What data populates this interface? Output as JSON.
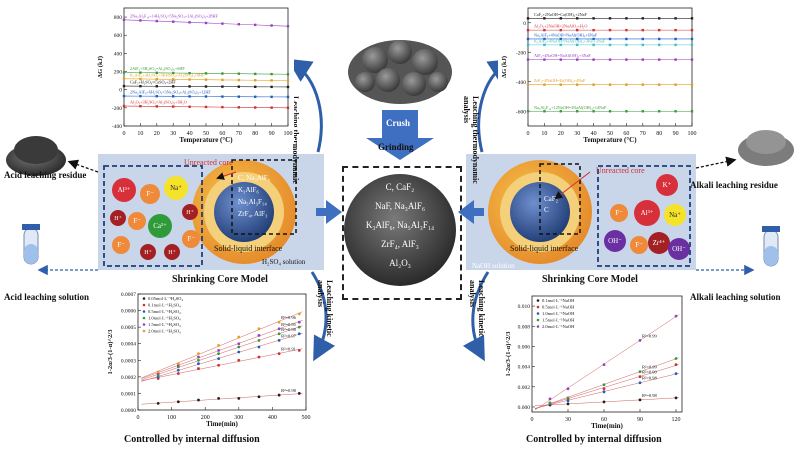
{
  "center": {
    "crush_label": "Crush",
    "grinding_label": "Grinding",
    "composition_lines": [
      "C, CaF₂",
      "NaF, Na₃AlF₆",
      "K₃AlF₆, Na₅Al₃F₁₄",
      "ZrF₄, AlF₃",
      "Al₂O₃"
    ]
  },
  "acid_side": {
    "residue_label": "Acid leaching residue",
    "solution_label": "Acid leaching solution",
    "thermo_label": "Leaching thermodynamic analysis",
    "kinetic_label": "Leaching kinetic analysis",
    "core_title": "Shrinking Core Model",
    "unreacted_core": "Unreacted core",
    "interface_label": "Solid-liquid interface",
    "solution_tag": "H₂SO₄ solution",
    "core_species": [
      "C, Na₃AlF₆",
      "K₃AlF₆",
      "Na₅Al₃F₁₄",
      "ZrF₄, AlF₃"
    ],
    "ions": [
      "Al³⁺",
      "F⁻",
      "Na⁺",
      "H⁺",
      "F⁻",
      "Ca²⁺",
      "H⁺",
      "F⁻",
      "H⁺",
      "H⁺",
      "F⁻"
    ],
    "controlled_label": "Controlled by internal diffusion"
  },
  "alkali_side": {
    "residue_label": "Alkali leaching residue",
    "solution_label": "Alkali leaching solution",
    "thermo_label": "Leaching thermodynamic analysis",
    "kinetic_label": "Leaching kinetic analysis",
    "core_title": "Shrinking Core Model",
    "unreacted_core": "Unreacted core",
    "interface_label": "Solid-liquid interface",
    "solution_tag": "NaOH solution",
    "core_species": [
      "CaF₂",
      "C"
    ],
    "ions": [
      "K⁺",
      "F⁻",
      "Al³⁺",
      "Na⁺",
      "OH⁻",
      "F⁻",
      "Zr⁴⁺",
      "OH⁻"
    ],
    "controlled_label": "Controlled by internal diffusion"
  },
  "chart_data": [
    {
      "id": "acid-thermo",
      "type": "line",
      "xlabel": "Temperature (°C)",
      "ylabel": "ΔG (kJ)",
      "xticks": [
        0,
        10,
        20,
        30,
        40,
        50,
        60,
        70,
        80,
        90,
        100
      ],
      "ylim": [
        -400,
        900
      ],
      "yticks": [
        -400,
        -200,
        0,
        200,
        400,
        600,
        800
      ],
      "x": [
        0,
        10,
        20,
        30,
        40,
        50,
        60,
        70,
        80,
        90,
        100
      ],
      "series": [
        {
          "name": "2Na₅Al₃F₁₄+14H₂SO₄=5Na₂SO₄+3Al₂(SO₄)₃+28HF",
          "color": "#9b3fbf",
          "values": [
            770,
            763,
            756,
            749,
            742,
            735,
            728,
            721,
            714,
            707,
            700
          ]
        },
        {
          "name": "2AlF₃+3H₂SO₄=Al₂(SO₄)₃+6HF",
          "color": "#3a9a3a",
          "values": [
            190,
            188,
            186,
            184,
            182,
            180,
            178,
            176,
            174,
            172,
            170
          ]
        },
        {
          "name": "K₃AlF₆+3H₂SO₄=3KHSO₄+Al₂(SO₄)₃+6HF",
          "color": "#e0a020",
          "values": [
            120,
            118,
            116,
            114,
            112,
            110,
            108,
            106,
            104,
            102,
            100
          ]
        },
        {
          "name": "CaF₂+H₂SO₄=CaSO₄+2HF",
          "color": "#222222",
          "values": [
            40,
            39,
            38,
            37,
            36,
            35,
            34,
            33,
            32,
            31,
            30
          ]
        },
        {
          "name": "2Na₃AlF₆+6H₂SO₄=3Na₂SO₄+Al₂(SO₄)₃+12HF",
          "color": "#1f5fbf",
          "values": [
            -70,
            -71,
            -72,
            -73,
            -74,
            -75,
            -76,
            -77,
            -78,
            -79,
            -80
          ]
        },
        {
          "name": "Al₂O₃+3H₂SO₄=Al₂(SO₄)₃+3H₂O",
          "color": "#d03030",
          "values": [
            -180,
            -182,
            -184,
            -186,
            -188,
            -190,
            -192,
            -194,
            -196,
            -198,
            -200
          ]
        }
      ]
    },
    {
      "id": "alkali-thermo",
      "type": "line",
      "xlabel": "Temperature (°C)",
      "ylabel": "ΔG (kJ)",
      "xticks": [
        0,
        10,
        20,
        30,
        40,
        50,
        60,
        70,
        80,
        90,
        100
      ],
      "ylim": [
        -700,
        100
      ],
      "yticks": [
        -600,
        -400,
        -200,
        0
      ],
      "x": [
        0,
        10,
        20,
        30,
        40,
        50,
        60,
        70,
        80,
        90,
        100
      ],
      "series": [
        {
          "name": "CaF₂+2NaOH=Ca(OH)₂+2NaF",
          "color": "#222222",
          "values": [
            30,
            30,
            30,
            30,
            30,
            30,
            30,
            30,
            30,
            30,
            30
          ]
        },
        {
          "name": "Al₂O₃+2NaOH=2NaAlO₂+H₂O",
          "color": "#d03030",
          "values": [
            -50,
            -50,
            -50,
            -50,
            -50,
            -50,
            -50,
            -50,
            -50,
            -50,
            -50
          ]
        },
        {
          "name": "Na₃AlF₆+4NaOH=NaAl(OH)₄+6NaF",
          "color": "#1f5fbf",
          "values": [
            -110,
            -110,
            -110,
            -110,
            -110,
            -110,
            -110,
            -110,
            -110,
            -110,
            -110
          ]
        },
        {
          "name": "K₃AlF₆+4NaOH=NaAl(OH)₄+3KF+3NaF",
          "color": "#40c0c0",
          "values": [
            -150,
            -150,
            -150,
            -150,
            -150,
            -150,
            -150,
            -150,
            -150,
            -150,
            -150
          ]
        },
        {
          "name": "AlF₃+4NaOH=NaAl(OH)₄+3NaF",
          "color": "#9b3fbf",
          "values": [
            -250,
            -250,
            -250,
            -250,
            -250,
            -250,
            -250,
            -250,
            -250,
            -250,
            -250
          ]
        },
        {
          "name": "ZrF₄+4NaOH=Zr(OH)₄+4NaF",
          "color": "#e0a020",
          "values": [
            -420,
            -420,
            -420,
            -420,
            -420,
            -420,
            -420,
            -420,
            -420,
            -420,
            -420
          ]
        },
        {
          "name": "Na₅Al₃F₁₄+12NaOH=3NaAl(OH)₄+14NaF",
          "color": "#3a9a3a",
          "values": [
            -600,
            -600,
            -600,
            -600,
            -600,
            -600,
            -600,
            -600,
            -600,
            -600,
            -600
          ]
        }
      ]
    },
    {
      "id": "acid-kinetic",
      "type": "scatter",
      "xlabel": "Time(min)",
      "ylabel": "1-2α/3-(1-α)^2/3",
      "xlim": [
        0,
        500
      ],
      "xticks": [
        0,
        100,
        200,
        300,
        400,
        500
      ],
      "ylim": [
        0,
        0.0007
      ],
      "yticks": [
        0,
        0.0001,
        0.0002,
        0.0003,
        0.0004,
        0.0005,
        0.0006,
        0.0007
      ],
      "ytick_labels": [
        "0.0000",
        "0.0001",
        "0.0002",
        "0.0003",
        "0.0004",
        "0.0005",
        "0.0006",
        "0.0007"
      ],
      "x": [
        60,
        120,
        180,
        240,
        300,
        360,
        420,
        480
      ],
      "series": [
        {
          "name": "0.05mol·L⁻¹H₂SO₄",
          "color": "#222222",
          "r2": "R²=0.98",
          "values": [
            4e-05,
            5e-05,
            6e-05,
            7e-05,
            7e-05,
            8e-05,
            9e-05,
            0.0001
          ]
        },
        {
          "name": "0.1mol·L⁻¹H₂SO₄",
          "color": "#d03030",
          "r2": "R²=0.91",
          "values": [
            0.00019,
            0.00022,
            0.00025,
            0.00027,
            0.0003,
            0.00032,
            0.00034,
            0.00036
          ]
        },
        {
          "name": "0.5mol·L⁻¹H₂SO₄",
          "color": "#1f5fbf",
          "r2": "R²=0.97",
          "values": [
            0.0002,
            0.00024,
            0.00028,
            0.00031,
            0.00035,
            0.00038,
            0.00042,
            0.00046
          ]
        },
        {
          "name": "1.0mol·L⁻¹H₂SO₄",
          "color": "#3a9a3a",
          "r2": "R²=0.98",
          "values": [
            0.00021,
            0.00026,
            0.0003,
            0.00034,
            0.00038,
            0.00042,
            0.00046,
            0.0005
          ]
        },
        {
          "name": "1.5mol·L⁻¹H₂SO₄",
          "color": "#9b3fbf",
          "r2": "R²=0.95",
          "values": [
            0.00022,
            0.00027,
            0.00032,
            0.00036,
            0.0004,
            0.00045,
            0.00049,
            0.00053
          ]
        },
        {
          "name": "2.0mol·L⁻¹H₂SO₄",
          "color": "#e0a020",
          "r2": "R²=0.96",
          "values": [
            0.00023,
            0.00028,
            0.00034,
            0.00039,
            0.00044,
            0.00049,
            0.00053,
            0.00058
          ]
        }
      ]
    },
    {
      "id": "alkali-kinetic",
      "type": "scatter",
      "xlabel": "Time(min)",
      "ylabel": "1-2α/3-(1-α)^2/3",
      "xlim": [
        0,
        125
      ],
      "xticks": [
        0,
        30,
        60,
        90,
        120
      ],
      "ylim": [
        -0.0005,
        0.011
      ],
      "yticks": [
        0,
        0.002,
        0.004,
        0.006,
        0.008,
        0.01
      ],
      "ytick_labels": [
        "0.000",
        "0.002",
        "0.004",
        "0.006",
        "0.008",
        "0.010"
      ],
      "x": [
        15,
        30,
        60,
        90,
        120
      ],
      "series": [
        {
          "name": "0.1mol·L⁻¹NaOH",
          "color": "#222222",
          "r2": "R²=0.98",
          "values": [
            0.0002,
            0.0003,
            0.0005,
            0.0007,
            0.0009
          ]
        },
        {
          "name": "0.5mol·L⁻¹NaOH",
          "color": "#d03030",
          "r2": "R²=0.90",
          "values": [
            0.0004,
            0.0008,
            0.0018,
            0.003,
            0.0042
          ]
        },
        {
          "name": "1.0mol·L⁻¹NaOH",
          "color": "#1f5fbf",
          "r2": "R²=0.98",
          "values": [
            0.0003,
            0.0006,
            0.0015,
            0.0024,
            0.0033
          ]
        },
        {
          "name": "1.5mol·L⁻¹NaOH",
          "color": "#3a9a3a",
          "r2": "R²=0.99",
          "values": [
            0.0004,
            0.0009,
            0.0022,
            0.0035,
            0.0048
          ]
        },
        {
          "name": "2.0mol·L⁻¹NaOH",
          "color": "#9b3fbf",
          "r2": "R²=0.99",
          "values": [
            0.0008,
            0.0018,
            0.0042,
            0.0066,
            0.009
          ]
        }
      ]
    }
  ]
}
